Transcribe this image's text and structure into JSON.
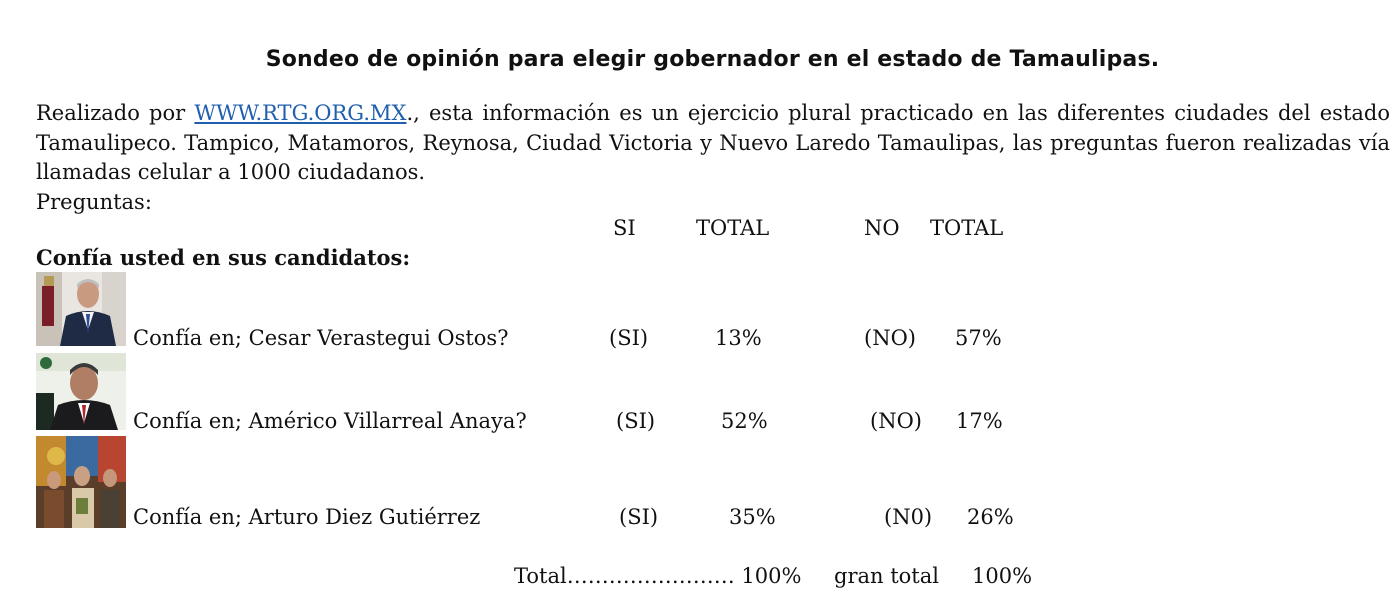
{
  "title": "Sondeo de opinión para elegir gobernador  en el estado de Tamaulipas.",
  "intro": {
    "prefix": "Realizado por ",
    "link": "WWW.RTG.ORG.MX",
    "line1_rest": "., esta información es un ejercicio plural practicado en las diferentes ciudades del estado",
    "line2": "Tamaulipeco. Tampico, Matamoros, Reynosa, Ciudad Victoria y Nuevo Laredo Tamaulipas, las preguntas fueron realizadas vía",
    "line3": "llamadas celular a 1000 ciudadanos."
  },
  "preguntas_label": "Preguntas:",
  "headers": {
    "si": "SI",
    "total1": "TOTAL",
    "no": "NO",
    "total2": "TOTAL"
  },
  "section_heading": "Confía usted en sus candidatos:",
  "rows": [
    {
      "question": "Confía en; Cesar Verastegui Ostos?",
      "si": "(SI)",
      "si_pct": "13%",
      "no": "(NO)",
      "no_pct": "57%",
      "photo": "candidate-photo"
    },
    {
      "question": "Confía en; Américo Villarreal Anaya?",
      "si": "(SI)",
      "si_pct": "52%",
      "no": "(NO)",
      "no_pct": "17%",
      "photo": "candidate-photo"
    },
    {
      "question": "Confía en; Arturo Diez Gutiérrez",
      "si": "(SI)",
      "si_pct": "35%",
      "no": "(N0)",
      "no_pct": "26%",
      "photo": "candidate-group-photo"
    }
  ],
  "totals": {
    "label": "Total…………………… 100%",
    "gran_total_label": "gran total",
    "gran_total_value": "100%"
  }
}
